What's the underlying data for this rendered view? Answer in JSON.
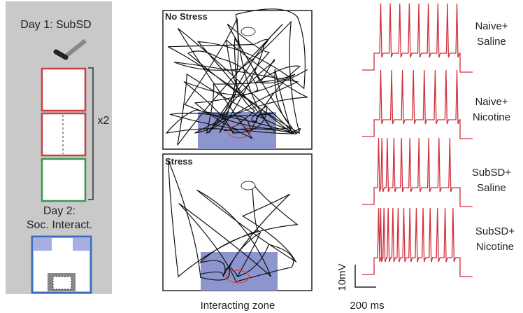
{
  "protocol": {
    "day1_label": "Day 1: SubSD",
    "repeat_label": "x2",
    "day2_label": [
      "Day 2:",
      "Soc. Interact."
    ]
  },
  "tracking": {
    "panels": [
      {
        "label": "No Stress"
      },
      {
        "label": "Stress"
      }
    ],
    "zone_label": "Interacting zone"
  },
  "traces": {
    "groups": [
      {
        "label": [
          "Naive+",
          "Saline"
        ]
      },
      {
        "label": [
          "Naive+",
          "Nicotine"
        ]
      },
      {
        "label": [
          "SubSD+",
          "Saline"
        ]
      },
      {
        "label": [
          "SubSD+",
          "Nicotine"
        ]
      }
    ],
    "scale_bar": {
      "voltage": "10mV",
      "time": "200 ms"
    }
  }
}
